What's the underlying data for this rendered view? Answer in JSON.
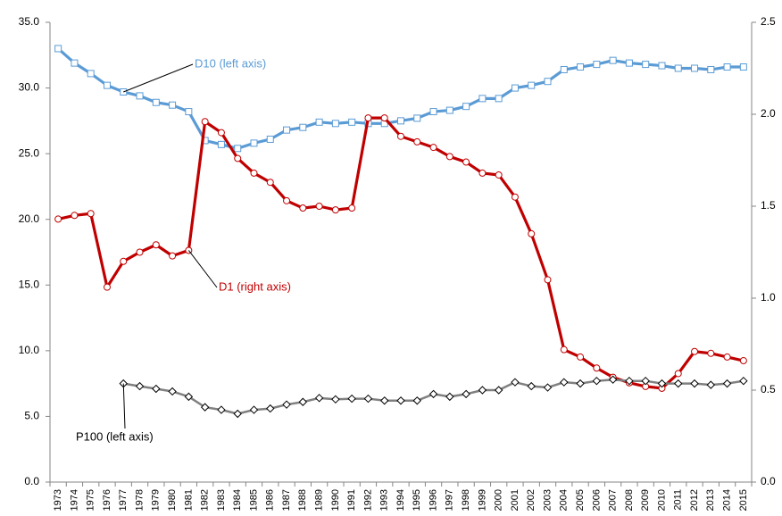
{
  "chart_data": {
    "type": "line",
    "categories": [
      "1973",
      "1974",
      "1975",
      "1976",
      "1977",
      "1978",
      "1979",
      "1980",
      "1981",
      "1982",
      "1983",
      "1984",
      "1985",
      "1986",
      "1987",
      "1988",
      "1989",
      "1990",
      "1991",
      "1992",
      "1993",
      "1994",
      "1995",
      "1996",
      "1997",
      "1998",
      "1999",
      "2000",
      "2001",
      "2002",
      "2003",
      "2004",
      "2005",
      "2006",
      "2007",
      "2008",
      "2009",
      "2010",
      "2011",
      "2012",
      "2013",
      "2014",
      "2015"
    ],
    "series": [
      {
        "name": "D10 (left axis)",
        "color": "#5b9bd5",
        "marker": "square",
        "axis": "y",
        "values": [
          33.0,
          31.9,
          31.1,
          30.2,
          29.7,
          29.4,
          28.9,
          28.7,
          28.2,
          26.0,
          25.7,
          25.4,
          25.8,
          26.1,
          26.8,
          27.0,
          27.4,
          27.3,
          27.4,
          27.3,
          27.3,
          27.5,
          27.7,
          28.2,
          28.3,
          28.6,
          29.2,
          29.2,
          30.0,
          30.2,
          30.5,
          31.4,
          31.6,
          31.8,
          32.1,
          31.9,
          31.8,
          31.7,
          31.5,
          31.5,
          31.4,
          31.6,
          31.6
        ]
      },
      {
        "name": "D1 (right axis)",
        "color": "#c00000",
        "marker": "circle",
        "axis": "y2",
        "values": [
          1.43,
          1.45,
          1.46,
          1.06,
          1.2,
          1.25,
          1.29,
          1.23,
          1.26,
          1.96,
          1.9,
          1.76,
          1.68,
          1.63,
          1.53,
          1.49,
          1.5,
          1.48,
          1.49,
          1.98,
          1.98,
          1.88,
          1.85,
          1.82,
          1.77,
          1.74,
          1.68,
          1.67,
          1.55,
          1.35,
          1.1,
          0.72,
          0.68,
          0.62,
          0.57,
          0.54,
          0.52,
          0.51,
          0.59,
          0.71,
          0.7,
          0.68,
          0.66
        ]
      },
      {
        "name": "P100 (left axis)",
        "color": "#808080",
        "marker": "diamond",
        "axis": "y",
        "values": [
          null,
          null,
          null,
          null,
          7.5,
          7.3,
          7.1,
          6.9,
          6.5,
          5.7,
          5.5,
          5.2,
          5.5,
          5.6,
          5.9,
          6.1,
          6.4,
          6.3,
          6.35,
          6.35,
          6.2,
          6.2,
          6.2,
          6.7,
          6.5,
          6.7,
          7.0,
          7.0,
          7.6,
          7.3,
          7.2,
          7.6,
          7.5,
          7.7,
          7.8,
          7.7,
          7.7,
          7.5,
          7.5,
          7.5,
          7.4,
          7.5,
          7.7
        ]
      }
    ],
    "ylim": [
      0,
      35
    ],
    "yticks": [
      {
        "value": 0,
        "label": "0.0"
      },
      {
        "value": 5,
        "label": "5.0"
      },
      {
        "value": 10,
        "label": "10.0"
      },
      {
        "value": 15,
        "label": "15.0"
      },
      {
        "value": 20,
        "label": "20.0"
      },
      {
        "value": 25,
        "label": "25.0"
      },
      {
        "value": 30,
        "label": "30.0"
      },
      {
        "value": 35,
        "label": "35.0"
      }
    ],
    "y2lim": [
      0,
      2.5
    ],
    "y2ticks": [
      {
        "value": 0,
        "label": "0.0"
      },
      {
        "value": 0.5,
        "label": "0.5"
      },
      {
        "value": 1,
        "label": "1.0"
      },
      {
        "value": 1.5,
        "label": "1.5"
      },
      {
        "value": 2,
        "label": "2.0"
      },
      {
        "value": 2.5,
        "label": "2.5"
      }
    ],
    "grid": false
  }
}
